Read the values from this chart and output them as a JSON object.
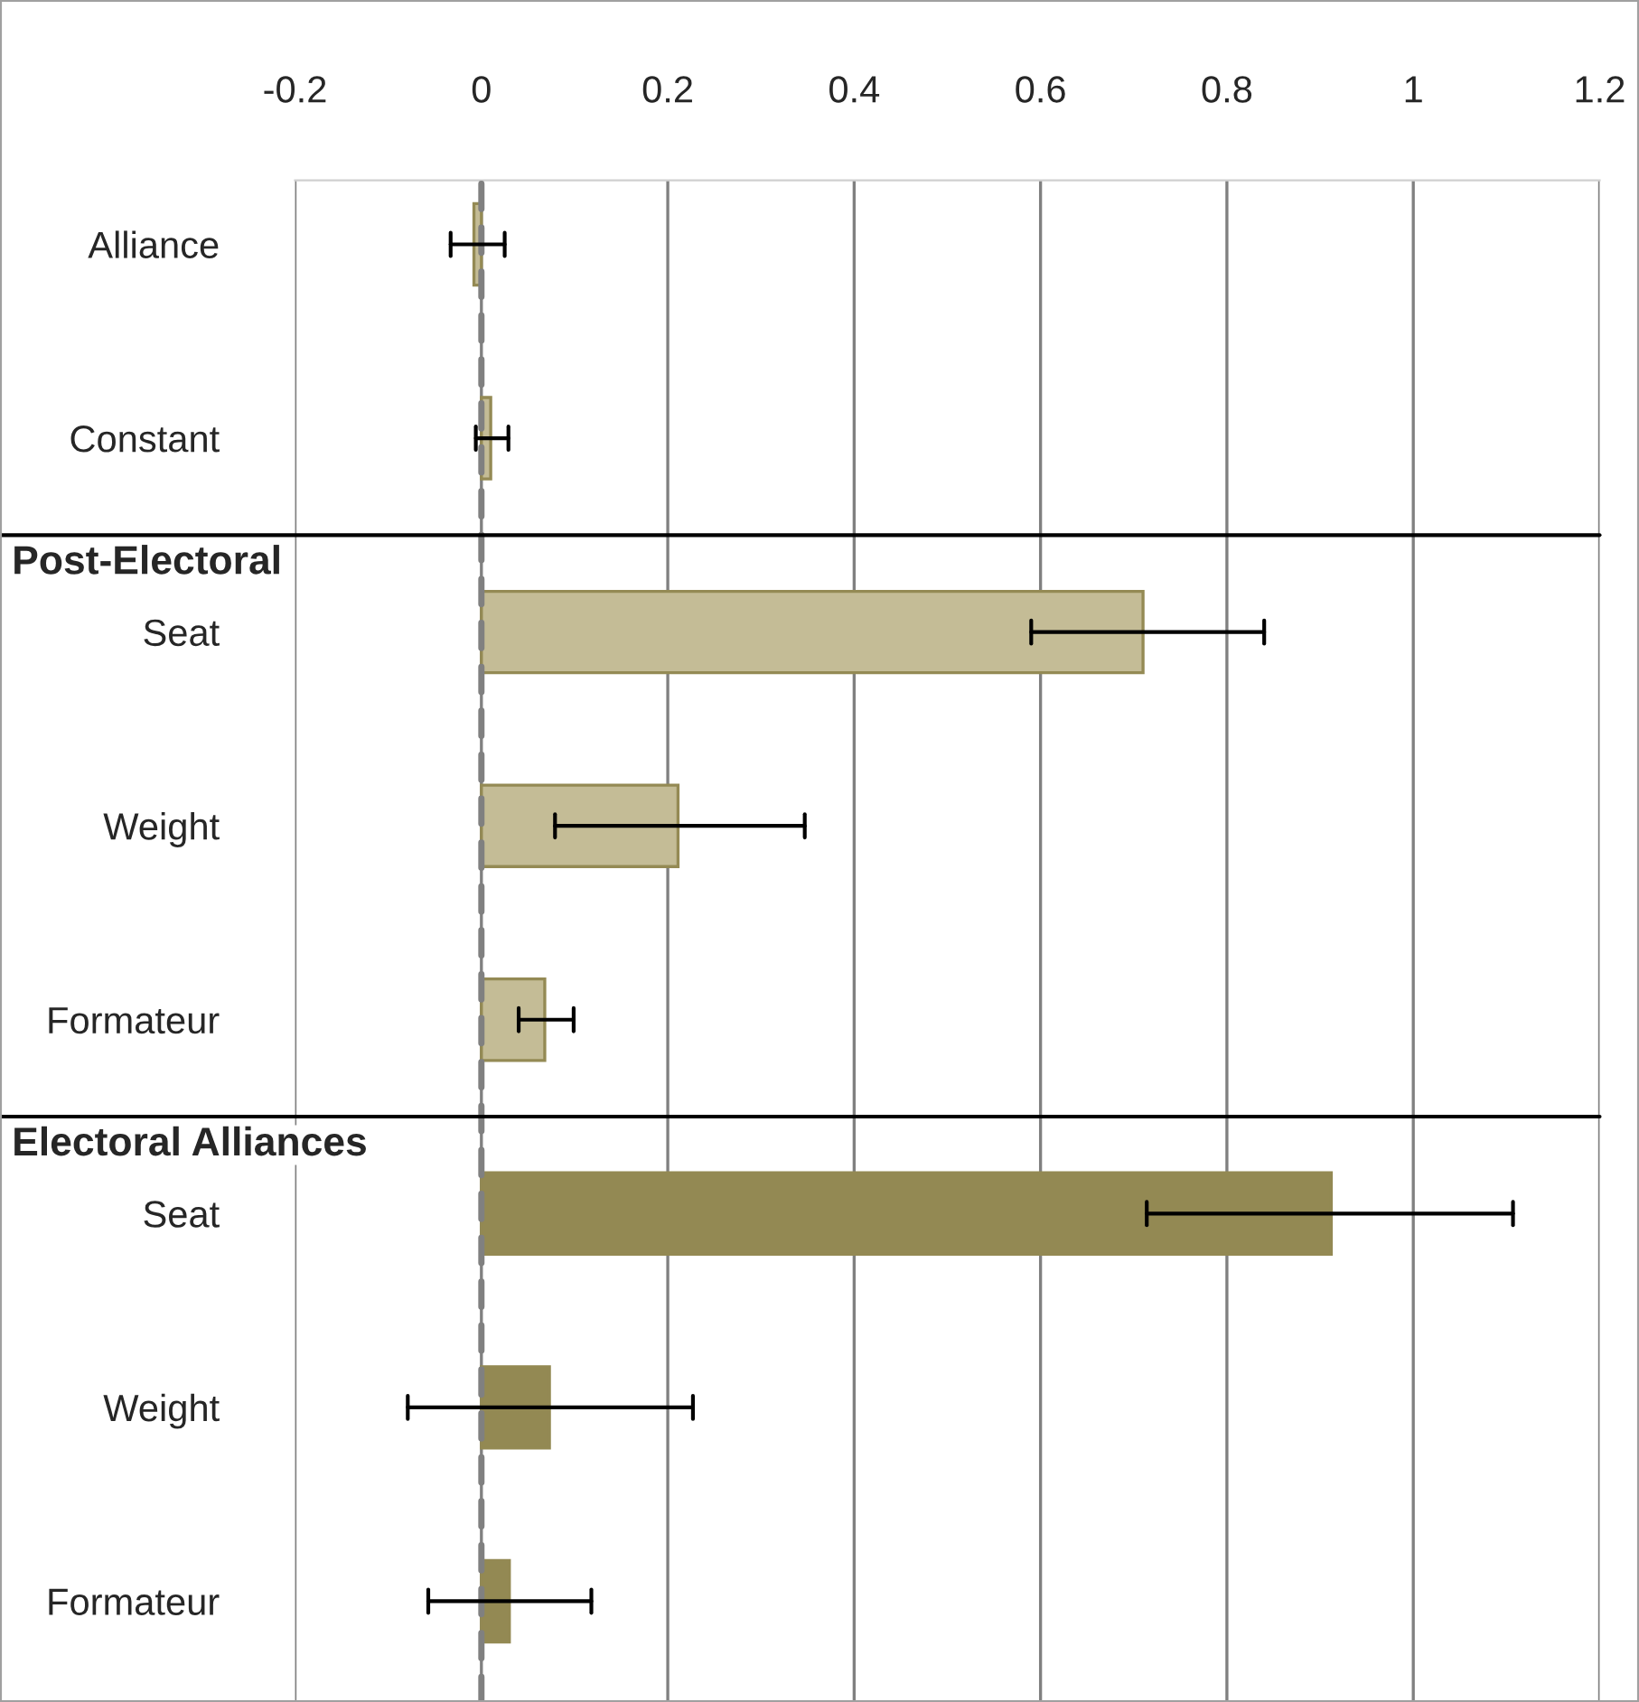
{
  "chart_data": {
    "type": "bar",
    "orientation": "horizontal",
    "categories": [
      "Alliance",
      "Constant",
      "Seat",
      "Weight",
      "Formateur",
      "Seat",
      "Weight",
      "Formateur"
    ],
    "series": [
      {
        "color": "#c4bc96",
        "values": [
          -0.008,
          0.01,
          0.71,
          0.211,
          0.068,
          null,
          null,
          null
        ],
        "errors": [
          [
            -0.033,
            0.025
          ],
          [
            -0.006,
            0.029
          ],
          [
            0.59,
            0.84
          ],
          [
            0.079,
            0.347
          ],
          [
            0.04,
            0.099
          ],
          null,
          null,
          null
        ]
      },
      {
        "color": "#938953",
        "values": [
          null,
          null,
          null,
          null,
          null,
          0.912,
          0.073,
          0.03
        ],
        "errors": [
          null,
          null,
          null,
          null,
          null,
          [
            0.714,
            1.107
          ],
          [
            -0.079,
            0.227
          ],
          [
            -0.057,
            0.118
          ]
        ]
      }
    ],
    "xlim": [
      -0.2,
      1.2
    ],
    "xticks": [
      -0.2,
      0,
      0.2,
      0.4,
      0.6,
      0.8,
      1,
      1.2
    ],
    "grid": "x",
    "ref_lines": [
      {
        "axis": "x",
        "value": 0,
        "color": "#808080",
        "line_style": "dashed"
      }
    ],
    "annotations": [
      "Post-Electoral",
      "Electoral Alliances"
    ]
  }
}
